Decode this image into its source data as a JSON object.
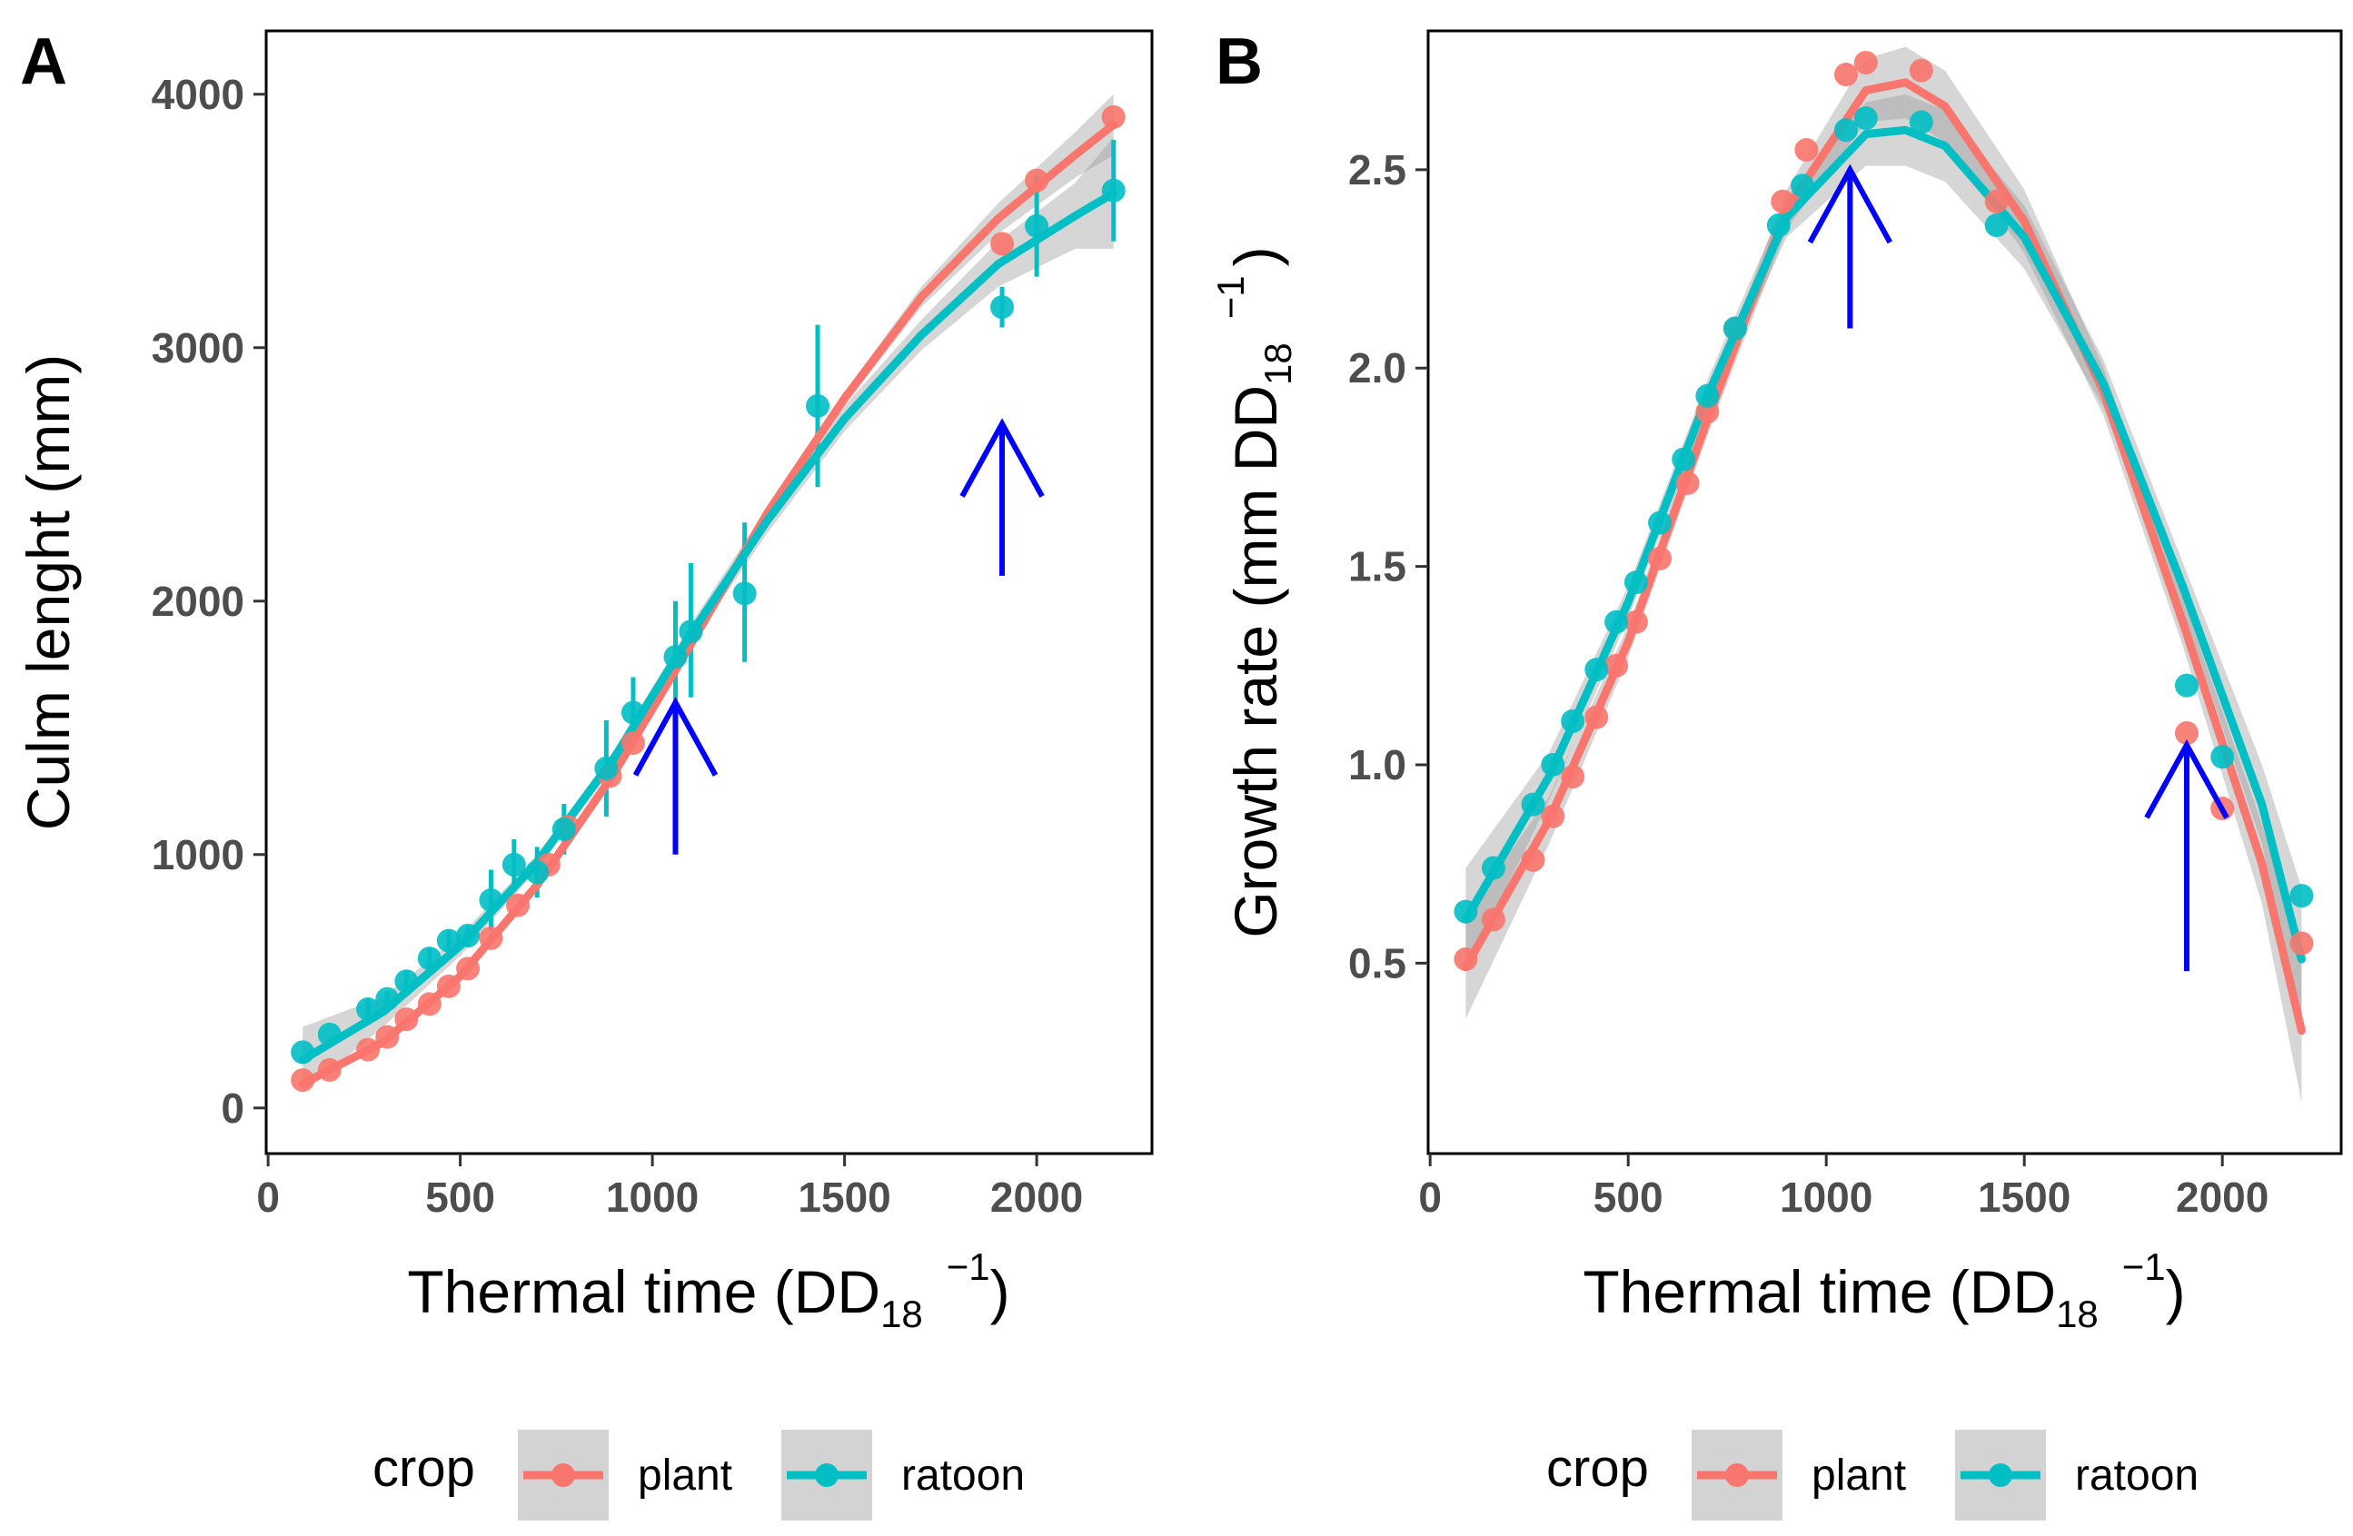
{
  "colors": {
    "plant": "#F8766D",
    "ratoon": "#00BFC4",
    "arrow": "#0000FF",
    "ribbon": "#999999",
    "legend_key_bg": "#D3D3D3"
  },
  "legend": {
    "title": "crop",
    "items": [
      "plant",
      "ratoon"
    ]
  },
  "chart_data": [
    {
      "panel": "A",
      "type": "scatter",
      "xlabel": {
        "main": "Thermal time (DD",
        "sub": "18",
        "sup": "−1",
        "close": ")"
      },
      "ylabel": "Culm lenght (mm)",
      "xlim": [
        -5,
        2300
      ],
      "ylim": [
        -180,
        4250
      ],
      "xticks": [
        0,
        500,
        1000,
        1500,
        2000
      ],
      "yticks": [
        0,
        1000,
        2000,
        3000,
        4000
      ],
      "series": [
        {
          "name": "plant",
          "points": [
            [
              90,
              110
            ],
            [
              160,
              150
            ],
            [
              260,
              230
            ],
            [
              310,
              280
            ],
            [
              360,
              350
            ],
            [
              420,
              410
            ],
            [
              470,
              480
            ],
            [
              520,
              550
            ],
            [
              580,
              670
            ],
            [
              650,
              800
            ],
            [
              730,
              960
            ],
            [
              780,
              1110
            ],
            [
              890,
              1310
            ],
            [
              950,
              1440
            ],
            [
              1910,
              3410
            ],
            [
              2000,
              3660
            ],
            [
              2200,
              3910
            ]
          ],
          "fit": [
            [
              90,
              95
            ],
            [
              300,
              260
            ],
            [
              500,
              520
            ],
            [
              700,
              880
            ],
            [
              900,
              1320
            ],
            [
              1100,
              1830
            ],
            [
              1300,
              2350
            ],
            [
              1500,
              2800
            ],
            [
              1700,
              3200
            ],
            [
              1900,
              3510
            ],
            [
              2100,
              3760
            ],
            [
              2200,
              3880
            ]
          ],
          "ribbon": [
            5,
            10,
            15,
            20,
            25,
            25,
            25,
            25,
            40,
            60,
            90,
            120
          ]
        },
        {
          "name": "ratoon",
          "points": [
            [
              90,
              220
            ],
            [
              160,
              290
            ],
            [
              260,
              390
            ],
            [
              310,
              430
            ],
            [
              360,
              500
            ],
            [
              420,
              590
            ],
            [
              470,
              660
            ],
            [
              520,
              680
            ],
            [
              580,
              820
            ],
            [
              640,
              960
            ],
            [
              700,
              930
            ],
            [
              770,
              1100
            ],
            [
              880,
              1340
            ],
            [
              950,
              1560
            ],
            [
              1060,
              1780
            ],
            [
              1100,
              1880
            ],
            [
              1240,
              2030
            ],
            [
              1430,
              2770
            ],
            [
              1910,
              3160
            ],
            [
              2000,
              3480
            ],
            [
              2200,
              3620
            ]
          ],
          "errors": [
            [
              90,
              220,
              220
            ],
            [
              160,
              290,
              290
            ],
            [
              260,
              350,
              430
            ],
            [
              310,
              400,
              460
            ],
            [
              360,
              460,
              540
            ],
            [
              420,
              550,
              630
            ],
            [
              470,
              620,
              700
            ],
            [
              520,
              640,
              720
            ],
            [
              580,
              700,
              940
            ],
            [
              640,
              860,
              1060
            ],
            [
              700,
              830,
              1030
            ],
            [
              770,
              1000,
              1200
            ],
            [
              880,
              1150,
              1530
            ],
            [
              950,
              1420,
              1700
            ],
            [
              1060,
              1560,
              2000
            ],
            [
              1100,
              1620,
              2150
            ],
            [
              1240,
              1760,
              2310
            ],
            [
              1430,
              2450,
              3090
            ],
            [
              1910,
              3080,
              3240
            ],
            [
              2000,
              3280,
              3680
            ],
            [
              2200,
              3420,
              3820
            ]
          ],
          "fit": [
            [
              90,
              190
            ],
            [
              300,
              380
            ],
            [
              500,
              640
            ],
            [
              700,
              970
            ],
            [
              900,
              1380
            ],
            [
              1100,
              1870
            ],
            [
              1300,
              2320
            ],
            [
              1500,
              2720
            ],
            [
              1700,
              3050
            ],
            [
              1900,
              3330
            ],
            [
              2100,
              3520
            ],
            [
              2200,
              3610
            ]
          ],
          "ribbon": [
            130,
            60,
            40,
            30,
            30,
            40,
            50,
            50,
            60,
            90,
            130,
            220
          ]
        }
      ],
      "arrows": [
        [
          1060,
          1000,
          1600
        ],
        [
          1910,
          2100,
          2700
        ]
      ]
    },
    {
      "panel": "B",
      "type": "scatter",
      "xlabel": {
        "main": "Thermal time (DD",
        "sub": "18",
        "sup": "−1",
        "close": ")"
      },
      "ylabel": {
        "main": "Growth rate (mm DD",
        "sub": "18",
        "sup": "−1",
        "close": ")"
      },
      "xlim": [
        -5,
        2300
      ],
      "ylim": [
        0.02,
        2.85
      ],
      "xticks": [
        0,
        500,
        1000,
        1500,
        2000
      ],
      "yticks": [
        0.5,
        1.0,
        1.5,
        2.0,
        2.5
      ],
      "ytick_labels": [
        "0.5",
        "1.0",
        "1.5",
        "2.0",
        "2.5"
      ],
      "series": [
        {
          "name": "plant",
          "points": [
            [
              90,
              0.51
            ],
            [
              160,
              0.61
            ],
            [
              260,
              0.76
            ],
            [
              310,
              0.87
            ],
            [
              360,
              0.97
            ],
            [
              420,
              1.12
            ],
            [
              470,
              1.25
            ],
            [
              520,
              1.36
            ],
            [
              580,
              1.52
            ],
            [
              650,
              1.71
            ],
            [
              700,
              1.89
            ],
            [
              770,
              2.1
            ],
            [
              890,
              2.42
            ],
            [
              950,
              2.55
            ],
            [
              1050,
              2.74
            ],
            [
              1100,
              2.77
            ],
            [
              1240,
              2.75
            ],
            [
              1430,
              2.42
            ],
            [
              1910,
              1.08
            ],
            [
              2000,
              0.89
            ],
            [
              2200,
              0.55
            ]
          ],
          "fit": [
            [
              90,
              0.49
            ],
            [
              300,
              0.86
            ],
            [
              500,
              1.31
            ],
            [
              700,
              1.87
            ],
            [
              900,
              2.4
            ],
            [
              1100,
              2.7
            ],
            [
              1200,
              2.72
            ],
            [
              1300,
              2.66
            ],
            [
              1500,
              2.37
            ],
            [
              1700,
              1.94
            ],
            [
              1900,
              1.36
            ],
            [
              2100,
              0.75
            ],
            [
              2200,
              0.33
            ]
          ],
          "ribbon": [
            0.13,
            0.06,
            0.04,
            0.04,
            0.05,
            0.08,
            0.09,
            0.09,
            0.08,
            0.06,
            0.06,
            0.1,
            0.18
          ]
        },
        {
          "name": "ratoon",
          "points": [
            [
              90,
              0.63
            ],
            [
              160,
              0.74
            ],
            [
              260,
              0.9
            ],
            [
              310,
              1.0
            ],
            [
              360,
              1.11
            ],
            [
              420,
              1.24
            ],
            [
              470,
              1.36
            ],
            [
              520,
              1.46
            ],
            [
              580,
              1.61
            ],
            [
              640,
              1.77
            ],
            [
              700,
              1.93
            ],
            [
              770,
              2.1
            ],
            [
              880,
              2.36
            ],
            [
              940,
              2.46
            ],
            [
              1050,
              2.6
            ],
            [
              1100,
              2.63
            ],
            [
              1240,
              2.62
            ],
            [
              1430,
              2.36
            ],
            [
              1910,
              1.2
            ],
            [
              2000,
              1.02
            ],
            [
              2200,
              0.67
            ]
          ],
          "fit": [
            [
              90,
              0.61
            ],
            [
              300,
              0.97
            ],
            [
              500,
              1.41
            ],
            [
              700,
              1.93
            ],
            [
              900,
              2.38
            ],
            [
              1100,
              2.59
            ],
            [
              1200,
              2.6
            ],
            [
              1300,
              2.56
            ],
            [
              1500,
              2.33
            ],
            [
              1700,
              1.96
            ],
            [
              1900,
              1.45
            ],
            [
              2100,
              0.9
            ],
            [
              2200,
              0.51
            ]
          ],
          "ribbon": [
            0.13,
            0.06,
            0.04,
            0.04,
            0.05,
            0.08,
            0.09,
            0.09,
            0.08,
            0.06,
            0.06,
            0.1,
            0.18
          ]
        }
      ],
      "arrows": [
        [
          1060,
          2.1,
          2.5
        ],
        [
          1910,
          0.48,
          1.05
        ]
      ]
    }
  ]
}
